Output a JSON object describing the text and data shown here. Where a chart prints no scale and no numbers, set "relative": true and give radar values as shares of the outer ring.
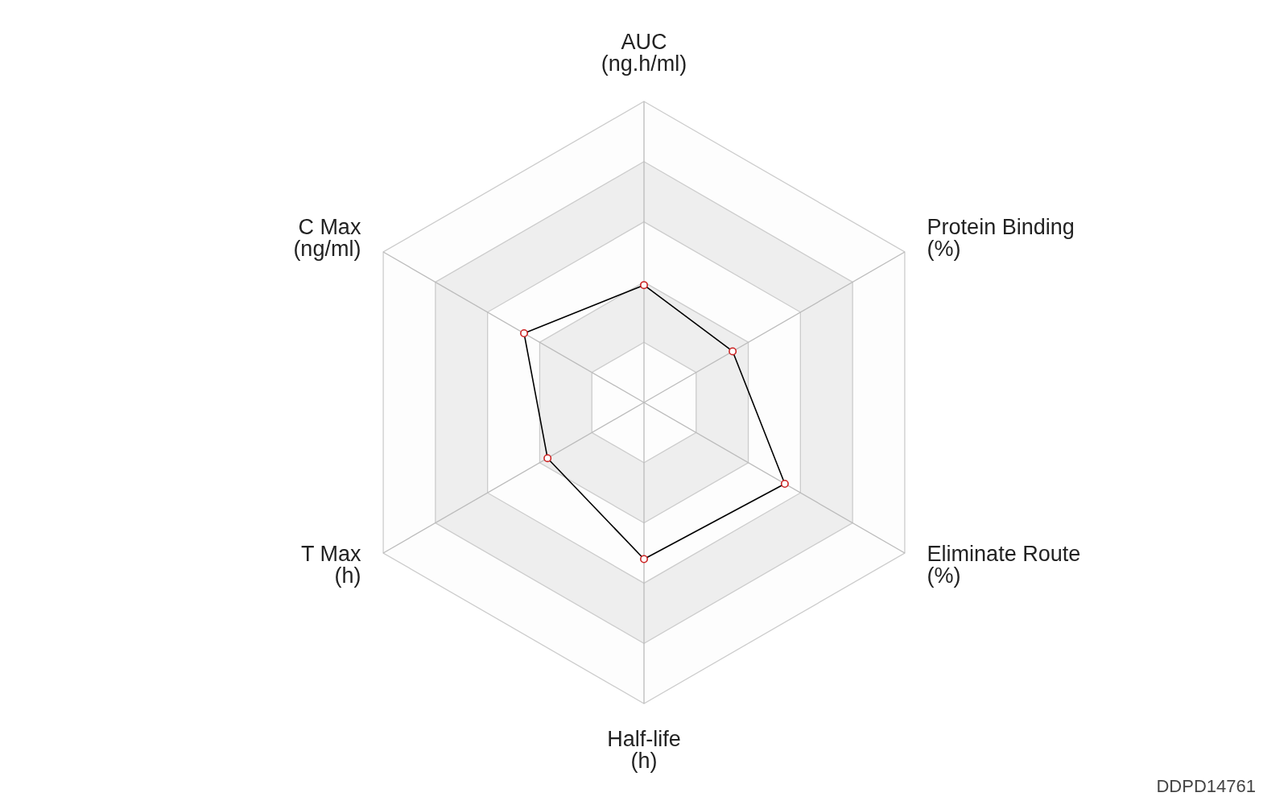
{
  "chart_data": {
    "type": "radar",
    "categories": [
      "AUC\n(ng.h/ml)",
      "Protein Binding\n(%)",
      "Eliminate Route\n(%)",
      "Half-life\n(h)",
      "T Max\n(h)",
      "C Max\n(ng/ml)"
    ],
    "relative": true,
    "series": [
      {
        "color": "#000000",
        "values": [
          0.39,
          0.34,
          0.54,
          0.52,
          0.37,
          0.46
        ]
      }
    ],
    "annotations": [
      "DDPD14761"
    ],
    "grid": true,
    "legend": false,
    "marker": "circle"
  }
}
